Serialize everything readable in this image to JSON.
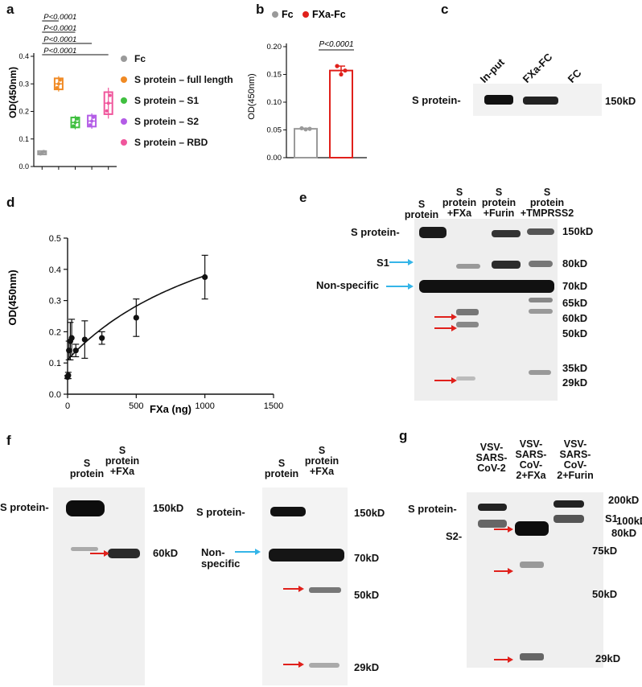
{
  "panels": {
    "a": {
      "letter": "a",
      "ylabel": "OD(450nm)",
      "ticks": [
        "0.0",
        "0.1",
        "0.2",
        "0.3",
        "0.4"
      ],
      "pvalues": [
        "P<0.0001",
        "P<0.0001",
        "P<0.0001",
        "P<0.0001"
      ],
      "legend": [
        {
          "label": "Fc",
          "color": "#9a9a9a"
        },
        {
          "label": "S protein – full length",
          "color": "#f08a24"
        },
        {
          "label": "S protein – S1",
          "color": "#3fbf3f"
        },
        {
          "label": "S protein – S2",
          "color": "#b35ce6"
        },
        {
          "label": "S protein – RBD",
          "color": "#f0569c"
        }
      ]
    },
    "b": {
      "letter": "b",
      "legend": [
        {
          "label": "Fc",
          "color": "#9a9a9a"
        },
        {
          "label": "FXa-Fc",
          "color": "#e0201b"
        }
      ],
      "ylabel": "OD(450nm)",
      "ticks": [
        "0.00",
        "0.05",
        "0.10",
        "0.15",
        "0.20"
      ],
      "pvalue": "P<0.0001"
    },
    "c": {
      "letter": "c",
      "lanes": [
        "In-put",
        "FXa-FC",
        "FC"
      ],
      "band_label": "S protein-",
      "marker": "150kD"
    },
    "d": {
      "letter": "d",
      "ylabel": "OD(450nm)",
      "xlabel": "FXa (ng)",
      "yticks": [
        "0.0",
        "0.1",
        "0.2",
        "0.3",
        "0.4",
        "0.5"
      ],
      "xticks": [
        "0",
        "500",
        "1000",
        "1500"
      ]
    },
    "e": {
      "letter": "e",
      "lanes": [
        "S\nprotein",
        "S\nprotein\n+FXa",
        "S\nprotein\n+Furin",
        "S\nprotein\n+TMPRSS2"
      ],
      "left_labels": [
        "S protein-",
        "S1",
        "Non-specific"
      ],
      "markers": [
        "150kD",
        "80kD",
        "70kD",
        "65kD",
        "60kD",
        "50kD",
        "35kD",
        "29kD"
      ]
    },
    "f": {
      "letter": "f",
      "left_blot": {
        "lanes": [
          "S\nprotein",
          "S\nprotein\n+FXa"
        ],
        "band_label": "S protein-",
        "markers": [
          "150kD",
          "60kD"
        ]
      },
      "right_blot": {
        "lanes": [
          "S\nprotein",
          "S\nprotein\n+FXa"
        ],
        "band_label": "S protein-",
        "nonspecific": "Non-\nspecific",
        "markers": [
          "150kD",
          "70kD",
          "50kD",
          "29kD"
        ]
      }
    },
    "g": {
      "letter": "g",
      "lanes": [
        "VSV-\nSARS-\nCoV-2",
        "VSV-\nSARS-\nCoV-\n2+FXa",
        "VSV-\nSARS-\nCoV-\n2+Furin"
      ],
      "left_labels": [
        "S protein-",
        "S2-"
      ],
      "right_labels": [
        "S1"
      ],
      "markers": [
        "200kD",
        "100kD",
        "80kD",
        "75kD",
        "50kD",
        "29kD"
      ]
    }
  },
  "chart_data": [
    {
      "type": "box",
      "panel": "a",
      "categories": [
        "Fc",
        "S protein – full length",
        "S protein – S1",
        "S protein – S2",
        "S protein – RBD"
      ],
      "values": [
        0.05,
        0.3,
        0.16,
        0.165,
        0.23
      ],
      "ylabel": "OD(450nm)",
      "ylim": [
        0,
        0.4
      ]
    },
    {
      "type": "bar",
      "panel": "b",
      "categories": [
        "Fc",
        "FXa-Fc"
      ],
      "values": [
        0.052,
        0.157
      ],
      "points": [
        [
          0.053,
          0.051,
          0.052
        ],
        [
          0.165,
          0.15,
          0.157
        ]
      ],
      "ylabel": "OD(450nm)",
      "ylim": [
        0,
        0.2
      ]
    },
    {
      "type": "scatter",
      "panel": "d",
      "x": [
        0,
        5,
        10,
        20,
        30,
        60,
        125,
        250,
        500,
        1000
      ],
      "y": [
        0.055,
        0.06,
        0.14,
        0.17,
        0.18,
        0.14,
        0.175,
        0.18,
        0.245,
        0.375
      ],
      "err": [
        0.005,
        0.01,
        0.03,
        0.06,
        0.06,
        0.02,
        0.06,
        0.02,
        0.06,
        0.07
      ],
      "xlabel": "FXa (ng)",
      "ylabel": "OD(450nm)",
      "xlim": [
        0,
        1500
      ],
      "ylim": [
        0,
        0.5
      ]
    }
  ]
}
